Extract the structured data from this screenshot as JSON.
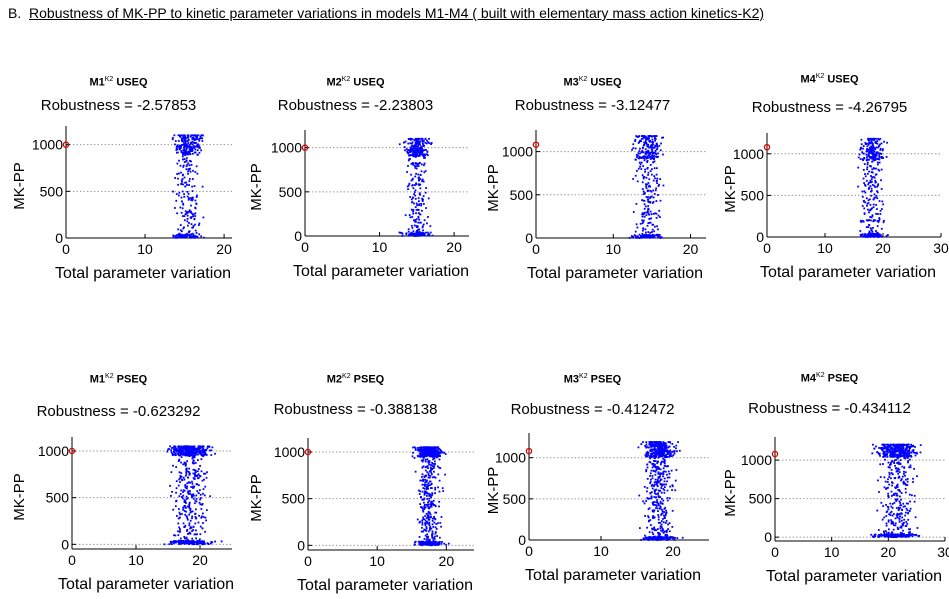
{
  "figure": {
    "label": "B.",
    "title": "Robustness of MK-PP to kinetic parameter variations in models M1-M4 ( built with elementary mass action kinetics-K2)"
  },
  "chart_data": [
    {
      "type": "scatter",
      "model": "M1",
      "superscript": "K2",
      "mode": "USEQ",
      "robustness_label": "Robustness = -2.57853",
      "xlabel": "Total parameter variation",
      "ylabel": "MK-PP",
      "xlim": [
        0,
        21
      ],
      "ylim": [
        0,
        1200
      ],
      "xticks": [
        0,
        10,
        20
      ],
      "yticks": [
        0,
        500,
        1000
      ],
      "grid": "y-dotted",
      "reference_point": {
        "x": 0,
        "y": 1000
      },
      "cloud": {
        "x_range": [
          12,
          19
        ],
        "dense_bands_y": [
          0,
          1000
        ],
        "y_max": 1100
      }
    },
    {
      "type": "scatter",
      "model": "M2",
      "superscript": "K2",
      "mode": "USEQ",
      "robustness_label": "Robustness = -2.23803",
      "xlabel": "Total parameter variation",
      "ylabel": "MK-PP",
      "xlim": [
        0,
        22
      ],
      "ylim": [
        0,
        1200
      ],
      "xticks": [
        0,
        10,
        20
      ],
      "yticks": [
        0,
        500,
        1000
      ],
      "grid": "y-dotted",
      "reference_point": {
        "x": 0,
        "y": 1000
      },
      "cloud": {
        "x_range": [
          12,
          18
        ],
        "dense_bands_y": [
          0,
          1000
        ],
        "y_max": 1100
      }
    },
    {
      "type": "scatter",
      "model": "M3",
      "superscript": "K2",
      "mode": "USEQ",
      "robustness_label": "Robustness = -3.12477",
      "xlabel": "Total parameter variation",
      "ylabel": "MK-PP",
      "xlim": [
        0,
        22
      ],
      "ylim": [
        0,
        1250
      ],
      "xticks": [
        0,
        10,
        20
      ],
      "yticks": [
        0,
        500,
        1000
      ],
      "grid": "y-dotted",
      "reference_point": {
        "x": 0,
        "y": 1080
      },
      "cloud": {
        "x_range": [
          11,
          18
        ],
        "dense_bands_y": [
          0,
          1050
        ],
        "y_max": 1180
      }
    },
    {
      "type": "scatter",
      "model": "M4",
      "superscript": "K2",
      "mode": "USEQ",
      "robustness_label": "Robustness = -4.26795",
      "xlabel": "Total parameter variation",
      "ylabel": "MK-PP",
      "xlim": [
        0,
        30
      ],
      "ylim": [
        0,
        1250
      ],
      "xticks": [
        0,
        10,
        20,
        30
      ],
      "yticks": [
        0,
        500,
        1000
      ],
      "grid": "y-dotted",
      "reference_point": {
        "x": 0,
        "y": 1080
      },
      "cloud": {
        "x_range": [
          14,
          22
        ],
        "dense_bands_y": [
          0,
          1050
        ],
        "y_max": 1180
      }
    },
    {
      "type": "scatter",
      "model": "M1",
      "superscript": "K2",
      "mode": "PSEQ",
      "robustness_label": "Robustness = -0.623292",
      "xlabel": "Total parameter variation",
      "ylabel": "MK-PP",
      "xlim": [
        0,
        25
      ],
      "ylim": [
        -50,
        1150
      ],
      "xticks": [
        0,
        10,
        20
      ],
      "yticks": [
        0,
        500,
        1000
      ],
      "grid": "y-dotted",
      "reference_point": {
        "x": 0,
        "y": 1000
      },
      "cloud": {
        "x_range": [
          13,
          24
        ],
        "dense_bands_y": [
          0,
          1000
        ],
        "y_max": 1050
      }
    },
    {
      "type": "scatter",
      "model": "M2",
      "superscript": "K2",
      "mode": "PSEQ",
      "robustness_label": "Robustness = -0.388138",
      "xlabel": "Total parameter variation",
      "ylabel": "MK-PP",
      "xlim": [
        0,
        24
      ],
      "ylim": [
        -50,
        1150
      ],
      "xticks": [
        0,
        10,
        20
      ],
      "yticks": [
        0,
        500,
        1000
      ],
      "grid": "y-dotted",
      "reference_point": {
        "x": 0,
        "y": 1000
      },
      "cloud": {
        "x_range": [
          14,
          21
        ],
        "dense_bands_y": [
          0,
          1000
        ],
        "y_max": 1050
      }
    },
    {
      "type": "scatter",
      "model": "M3",
      "superscript": "K2",
      "mode": "PSEQ",
      "robustness_label": "Robustness = -0.412472",
      "xlabel": "Total parameter variation",
      "ylabel": "MK-PP",
      "xlim": [
        0,
        25
      ],
      "ylim": [
        0,
        1300
      ],
      "xticks": [
        0,
        10,
        20
      ],
      "yticks": [
        0,
        500,
        1000
      ],
      "grid": "y-dotted",
      "reference_point": {
        "x": 0,
        "y": 1080
      },
      "cloud": {
        "x_range": [
          14,
          22
        ],
        "dense_bands_y": [
          0,
          1100
        ],
        "y_max": 1190
      }
    },
    {
      "type": "scatter",
      "model": "M4",
      "superscript": "K2",
      "mode": "PSEQ",
      "robustness_label": "Robustness = -0.434112",
      "xlabel": "Total parameter variation",
      "ylabel": "MK-PP",
      "xlim": [
        0,
        30
      ],
      "ylim": [
        -50,
        1300
      ],
      "xticks": [
        0,
        10,
        20,
        30
      ],
      "yticks": [
        0,
        500,
        1000
      ],
      "grid": "y-dotted",
      "reference_point": {
        "x": 0,
        "y": 1080
      },
      "cloud": {
        "x_range": [
          15,
          28
        ],
        "dense_bands_y": [
          0,
          1120
        ],
        "y_max": 1200
      }
    }
  ],
  "colors": {
    "points": "#0000ff",
    "reference": "#dd0000",
    "grid": "#9a9a9a",
    "axis": "#000000"
  }
}
